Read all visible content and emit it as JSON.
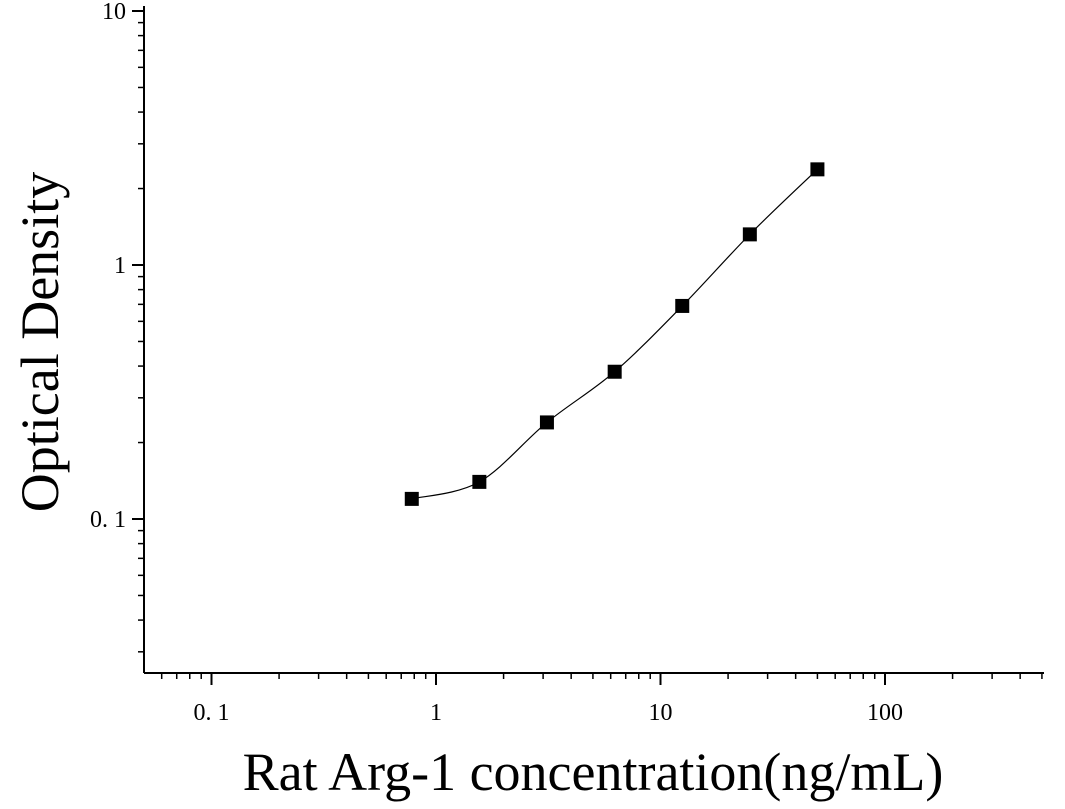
{
  "chart_data": {
    "type": "scatter",
    "title": "",
    "xlabel": "Rat Arg-1 concentration(ng/mL)",
    "ylabel": "Optical Density",
    "x_scale": "log",
    "y_scale": "log",
    "xlim": [
      0.05,
      500
    ],
    "ylim": [
      0.025,
      10
    ],
    "x_ticks": [
      {
        "value": 0.1,
        "label": "0. 1"
      },
      {
        "value": 1,
        "label": "1"
      },
      {
        "value": 10,
        "label": "10"
      },
      {
        "value": 100,
        "label": "100"
      }
    ],
    "y_ticks": [
      {
        "value": 0.1,
        "label": "0. 1"
      },
      {
        "value": 1,
        "label": "1"
      },
      {
        "value": 10,
        "label": "10"
      }
    ],
    "grid": false,
    "legend": "none",
    "series": [
      {
        "marker": "square",
        "fit_line": true,
        "x": [
          0.78,
          1.56,
          3.12,
          6.25,
          12.5,
          25,
          50
        ],
        "y": [
          0.12,
          0.14,
          0.24,
          0.38,
          0.69,
          1.32,
          2.38
        ]
      }
    ],
    "colors": {
      "marker": "#000000",
      "line": "#000000",
      "axis": "#000000"
    }
  }
}
